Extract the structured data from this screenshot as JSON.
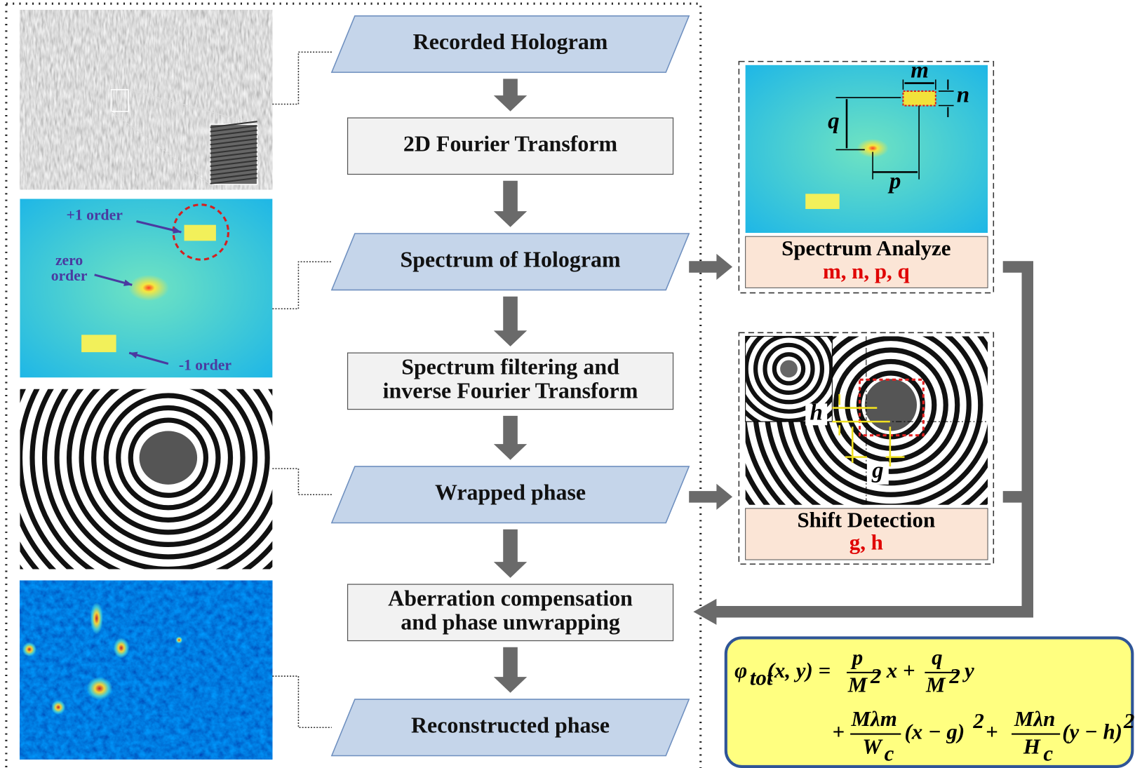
{
  "flow": {
    "steps": [
      {
        "lines": [
          "Recorded Hologram"
        ]
      },
      {
        "lines": [
          "2D Fourier Transform"
        ]
      },
      {
        "lines": [
          "Spectrum of  Hologram"
        ]
      },
      {
        "lines": [
          "Spectrum filtering and",
          "inverse Fourier Transform"
        ]
      },
      {
        "lines": [
          "Wrapped phase"
        ]
      },
      {
        "lines": [
          "Aberration compensation",
          "and phase unwrapping"
        ]
      },
      {
        "lines": [
          "Reconstructed phase"
        ]
      }
    ]
  },
  "spectrum_image": {
    "plus_one": "+1 order",
    "zero": [
      "zero",
      "order"
    ],
    "minus_one": "-1 order"
  },
  "spectrum_analyze": {
    "symbols": {
      "m": "m",
      "n": "n",
      "q": "q",
      "p": "p"
    },
    "title": "Spectrum Analyze",
    "params": "m,  n,  p,  q"
  },
  "shift_detection": {
    "symbols": {
      "h": "h",
      "g": "g"
    },
    "title": "Shift Detection",
    "params": "g,  h"
  },
  "formula": {
    "phi": "φ",
    "sub": "tot",
    "args": "(x, y) =",
    "f1": {
      "num": "p",
      "den": "M",
      "exp": "2"
    },
    "t1": "x +",
    "f2": {
      "num": "q",
      "den": "M",
      "exp": "2"
    },
    "t2": "y",
    "plus": "+",
    "f3": {
      "num": "Mλm",
      "den": "W",
      "sub": "c"
    },
    "t3": "(x − g)",
    "e3": "2",
    "plus2": "+",
    "f4": {
      "num": "Mλn",
      "den": "H",
      "sub": "c"
    },
    "t4": "(y − h)",
    "e4": "2"
  }
}
